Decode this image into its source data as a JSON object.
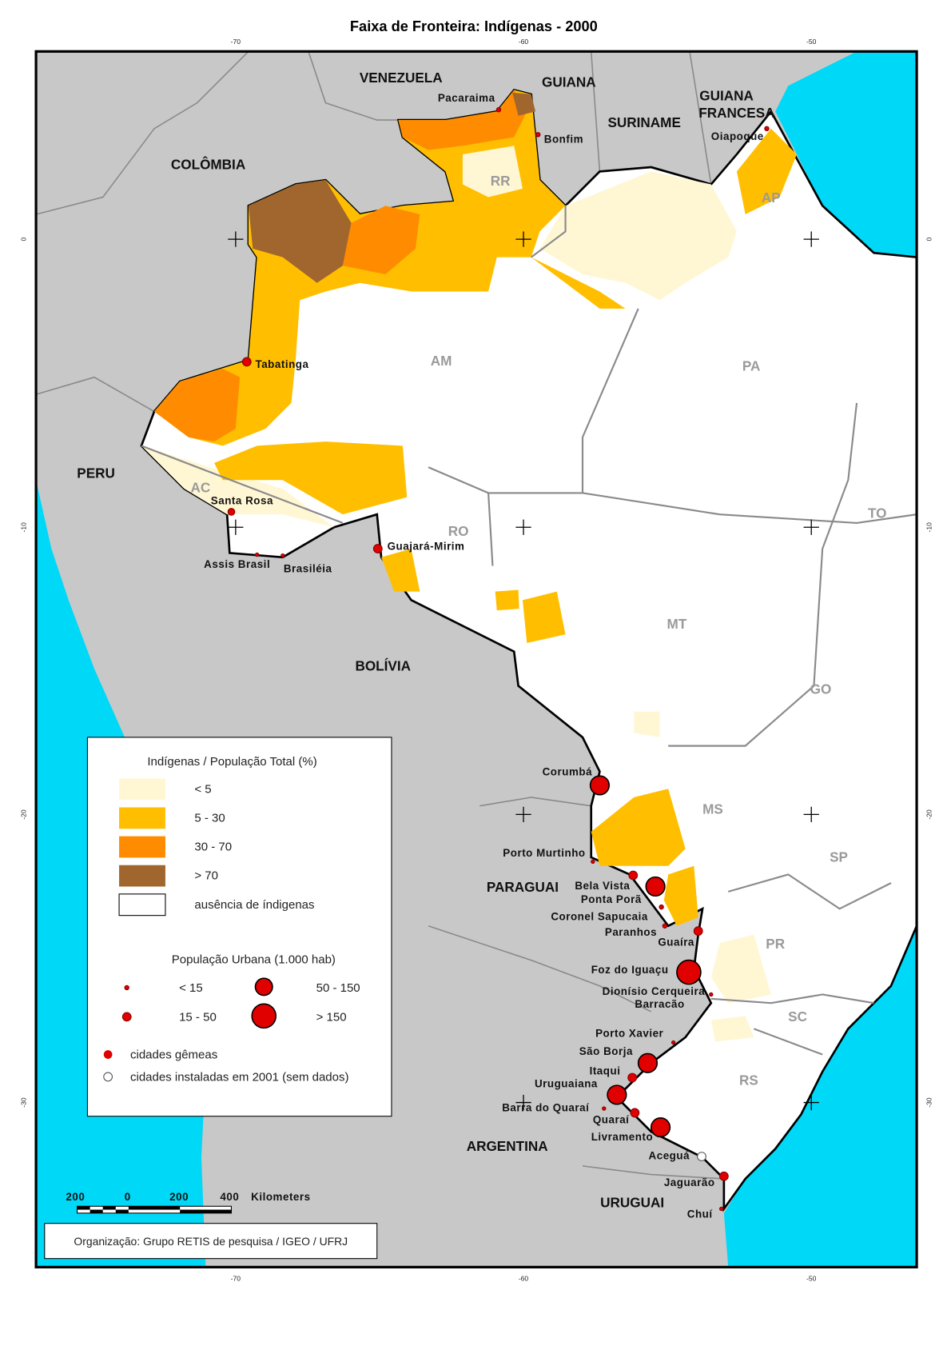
{
  "title": "Faixa de Fronteira: Indígenas - 2000",
  "graticule": {
    "longitudes": [
      "-70",
      "-60",
      "-50"
    ],
    "latitudes": [
      "0",
      "-10",
      "-20",
      "-30"
    ]
  },
  "countries": [
    "VENEZUELA",
    "GUIANA",
    "SURINAME",
    "COLÔMBIA",
    "PERU",
    "BOLÍVIA",
    "PARAGUAI",
    "ARGENTINA",
    "URUGUAI"
  ],
  "french_guiana": [
    "GUIANA",
    "FRANCESA"
  ],
  "states": [
    "RR",
    "AP",
    "AM",
    "PA",
    "AC",
    "RO",
    "TO",
    "MT",
    "GO",
    "MS",
    "SP",
    "PR",
    "SC",
    "RS"
  ],
  "cities": [
    "Pacaraima",
    "Bonfim",
    "Oiapoque",
    "Tabatinga",
    "Santa Rosa",
    "Assis Brasil",
    "Brasiléia",
    "Guajará-Mirim",
    "Corumbá",
    "Porto Murtinho",
    "Bela Vista",
    "Ponta Porã",
    "Coronel Sapucaia",
    "Paranhos",
    "Guaíra",
    "Foz do Iguaçu",
    "Dionísio Cerqueira",
    "Barracão",
    "Porto Xavier",
    "São Borja",
    "Itaqui",
    "Uruguaiana",
    "Barra do Quaraí",
    "Quaraí",
    "Livramento",
    "Aceguá",
    "Jaguarão",
    "Chuí"
  ],
  "legend": {
    "title": "Indígenas / População Total (%)",
    "classes": [
      "< 5",
      "5 - 30",
      "30 - 70",
      "> 70",
      "ausência de índigenas"
    ],
    "urban_title": "População Urbana (1.000 hab)",
    "urban_classes": [
      "< 15",
      "15 - 50",
      "50 - 150",
      "> 150"
    ],
    "symbols": [
      "cidades gêmeas",
      "cidades instaladas em 2001 (sem dados)"
    ]
  },
  "scale": {
    "labels": [
      "200",
      "0",
      "200",
      "400"
    ],
    "unit": "Kilometers"
  },
  "credit": "Organização: Grupo RETIS de pesquisa / IGEO / UFRJ"
}
